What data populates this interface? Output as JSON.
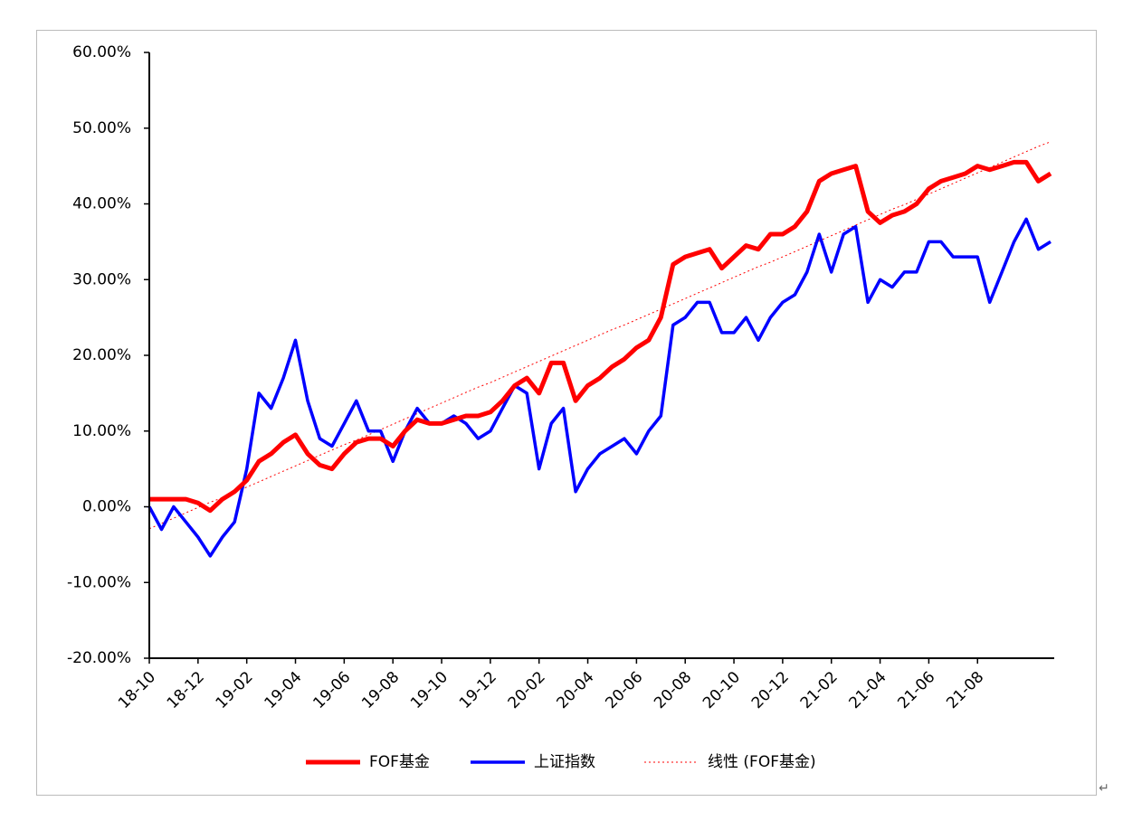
{
  "chart_data": {
    "type": "line",
    "categories": [
      "18-10",
      null,
      null,
      null,
      "18-12",
      null,
      null,
      null,
      "19-02",
      null,
      null,
      null,
      "19-04",
      null,
      null,
      null,
      "19-06",
      null,
      null,
      null,
      "19-08",
      null,
      null,
      null,
      "19-10",
      null,
      null,
      null,
      "19-12",
      null,
      null,
      null,
      "20-02",
      null,
      null,
      null,
      "20-04",
      null,
      null,
      null,
      "20-06",
      null,
      null,
      null,
      "20-08",
      null,
      null,
      null,
      "20-10",
      null,
      null,
      null,
      "20-12",
      null,
      null,
      null,
      "21-02",
      null,
      null,
      null,
      "21-04",
      null,
      null,
      null,
      "21-06",
      null,
      null,
      null,
      "21-08",
      null,
      null,
      null,
      null,
      null,
      null
    ],
    "series": [
      {
        "name": "FOF基金",
        "color": "#ff0000",
        "width": 5,
        "values": [
          1,
          1,
          1,
          1,
          0.5,
          -0.5,
          1,
          2,
          3.5,
          6,
          7,
          8.5,
          9.5,
          7,
          5.5,
          5,
          7,
          8.5,
          9,
          9,
          8,
          10,
          11.5,
          11,
          11,
          11.5,
          12,
          12,
          12.5,
          14,
          16,
          17,
          15,
          19,
          19,
          14,
          16,
          17,
          18.5,
          19.5,
          21,
          22,
          25,
          32,
          33,
          33.5,
          34,
          31.5,
          33,
          34.5,
          34,
          36,
          36,
          37,
          39,
          43,
          44,
          44.5,
          45,
          39,
          37.5,
          38.5,
          39,
          40,
          42,
          43,
          43.5,
          44,
          45,
          44.5,
          45,
          45.5,
          45.5,
          43,
          44
        ]
      },
      {
        "name": "上证指数",
        "color": "#0000ff",
        "width": 3.5,
        "values": [
          0,
          -3,
          0,
          -2,
          -4,
          -6.5,
          -4,
          -2,
          5,
          15,
          13,
          17,
          22,
          14,
          9,
          8,
          11,
          14,
          10,
          10,
          6,
          10,
          13,
          11,
          11,
          12,
          11,
          9,
          10,
          13,
          16,
          15,
          5,
          11,
          13,
          2,
          5,
          7,
          8,
          9,
          7,
          10,
          12,
          24,
          25,
          27,
          27,
          23,
          23,
          25,
          22,
          25,
          27,
          28,
          31,
          36,
          31,
          36,
          37,
          27,
          30,
          29,
          31,
          31,
          35,
          35,
          33,
          33,
          33,
          27,
          31,
          35,
          38,
          34,
          35
        ]
      },
      {
        "name": "线性 (FOF基金)",
        "color": "#ff0000",
        "width": 1,
        "dashed": true,
        "values": [
          -2.9,
          -2.2,
          -1.5,
          -0.8,
          -0.1,
          0.6,
          1.2,
          1.9,
          2.6,
          3.3,
          4.0,
          4.7,
          5.4,
          6.1,
          6.8,
          7.5,
          8.2,
          8.8,
          9.5,
          10.2,
          10.9,
          11.6,
          12.3,
          13.0,
          13.7,
          14.4,
          15.1,
          15.8,
          16.4,
          17.1,
          17.8,
          18.5,
          19.2,
          19.9,
          20.6,
          21.3,
          22.0,
          22.7,
          23.4,
          24.0,
          24.7,
          25.4,
          26.1,
          26.8,
          27.5,
          28.2,
          28.9,
          29.6,
          30.3,
          31.0,
          31.7,
          32.3,
          33.0,
          33.7,
          34.4,
          35.1,
          35.8,
          36.5,
          37.2,
          37.9,
          38.6,
          39.3,
          39.9,
          40.6,
          41.3,
          42.0,
          42.7,
          43.4,
          44.1,
          44.8,
          45.5,
          46.2,
          46.9,
          47.6,
          48.2
        ]
      }
    ],
    "ylim": [
      -20,
      60
    ],
    "yticks": [
      {
        "value": -20,
        "label": "-20.00%"
      },
      {
        "value": -10,
        "label": "-10.00%"
      },
      {
        "value": 0,
        "label": "0.00%"
      },
      {
        "value": 10,
        "label": "10.00%"
      },
      {
        "value": 20,
        "label": "20.00%"
      },
      {
        "value": 30,
        "label": "30.00%"
      },
      {
        "value": 40,
        "label": "40.00%"
      },
      {
        "value": 50,
        "label": "50.00%"
      },
      {
        "value": 60,
        "label": "60.00%"
      }
    ],
    "grid": false,
    "legend": "bottom"
  },
  "trailing_mark": "↵"
}
